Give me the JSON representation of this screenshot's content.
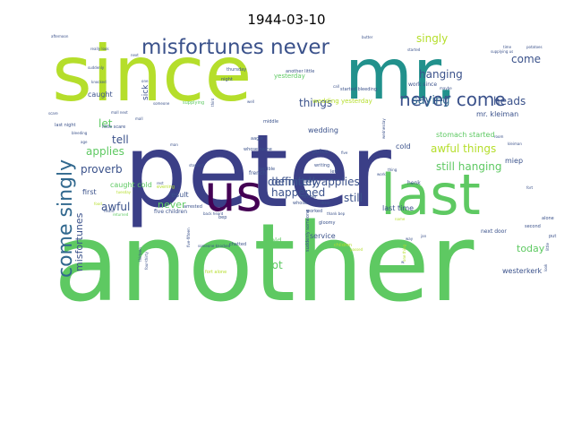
{
  "chart_data": {
    "type": "wordcloud",
    "title": "1944-03-10",
    "background": "#ffffff",
    "colormap": "viridis",
    "words": [
      {
        "text": "another",
        "weight": 100,
        "color": "#5ec962",
        "rotated": false
      },
      {
        "text": "peter",
        "weight": 98,
        "color": "#3b3f87",
        "rotated": false
      },
      {
        "text": "since",
        "weight": 80,
        "color": "#b5de2b",
        "rotated": false
      },
      {
        "text": "mr.",
        "weight": 78,
        "color": "#21918c",
        "rotated": false
      },
      {
        "text": "last",
        "weight": 60,
        "color": "#5ec962",
        "rotated": false
      },
      {
        "text": "us",
        "weight": 55,
        "color": "#440154",
        "rotated": false
      },
      {
        "text": "misfortunes never",
        "weight": 34,
        "color": "#3b528b",
        "rotated": false
      },
      {
        "text": "never come",
        "weight": 30,
        "color": "#3b528b",
        "rotated": false
      },
      {
        "text": "come singly",
        "weight": 30,
        "color": "#31688e",
        "rotated": true
      },
      {
        "text": "singly",
        "weight": 18,
        "color": "#b5de2b",
        "rotated": false
      },
      {
        "text": "hanging",
        "weight": 16,
        "color": "#3b528b",
        "rotated": false
      },
      {
        "text": "come",
        "weight": 15,
        "color": "#3b528b",
        "rotated": false
      },
      {
        "text": "saying",
        "weight": 16,
        "color": "#31688e",
        "rotated": false
      },
      {
        "text": "heads",
        "weight": 16,
        "color": "#3b528b",
        "rotated": false
      },
      {
        "text": "things",
        "weight": 15,
        "color": "#3b528b",
        "rotated": false
      },
      {
        "text": "let",
        "weight": 15,
        "color": "#5ec962",
        "rotated": false
      },
      {
        "text": "tell",
        "weight": 15,
        "color": "#3b528b",
        "rotated": false
      },
      {
        "text": "definitely",
        "weight": 15,
        "color": "#3b528b",
        "rotated": false
      },
      {
        "text": "definitely applies",
        "weight": 14,
        "color": "#3b528b",
        "rotated": false
      },
      {
        "text": "awful things",
        "weight": 14,
        "color": "#b5de2b",
        "rotated": false
      },
      {
        "text": "still hanging",
        "weight": 14,
        "color": "#5ec962",
        "rotated": false
      },
      {
        "text": "applies",
        "weight": 14,
        "color": "#5ec962",
        "rotated": false
      },
      {
        "text": "proverb",
        "weight": 14,
        "color": "#3b528b",
        "rotated": false
      },
      {
        "text": "awful",
        "weight": 14,
        "color": "#3b528b",
        "rotated": false
      },
      {
        "text": "happened",
        "weight": 13,
        "color": "#3b528b",
        "rotated": false
      },
      {
        "text": "still",
        "weight": 14,
        "color": "#3b528b",
        "rotated": false
      },
      {
        "text": "today",
        "weight": 13,
        "color": "#5ec962",
        "rotated": false
      },
      {
        "text": "got",
        "weight": 14,
        "color": "#5ec962",
        "rotated": false
      },
      {
        "text": "misfortunes",
        "weight": 13,
        "color": "#3b528b",
        "rotated": true
      },
      {
        "text": "sick",
        "weight": 10,
        "color": "#3b528b",
        "rotated": true
      },
      {
        "text": "never",
        "weight": 11,
        "color": "#5ec962",
        "rotated": false
      },
      {
        "text": "mr. kleiman",
        "weight": 9,
        "color": "#3b528b",
        "rotated": false
      },
      {
        "text": "miep",
        "weight": 10,
        "color": "#3b528b",
        "rotated": false
      },
      {
        "text": "wedding yesterday",
        "weight": 8,
        "color": "#b5de2b",
        "rotated": false
      },
      {
        "text": "wedding",
        "weight": 9,
        "color": "#3b528b",
        "rotated": false
      },
      {
        "text": "caught cold",
        "weight": 8,
        "color": "#5ec962",
        "rotated": false
      },
      {
        "text": "cold",
        "weight": 9,
        "color": "#3b528b",
        "rotated": false
      },
      {
        "text": "held",
        "weight": 9,
        "color": "#5ec962",
        "rotated": false
      },
      {
        "text": "first",
        "weight": 9,
        "color": "#3b528b",
        "rotated": false
      },
      {
        "text": "result",
        "weight": 8,
        "color": "#3b528b",
        "rotated": false
      },
      {
        "text": "caught",
        "weight": 8,
        "color": "#3b528b",
        "rotated": false
      },
      {
        "text": "yesterday",
        "weight": 8,
        "color": "#5ec962",
        "rotated": false
      },
      {
        "text": "work since",
        "weight": 8,
        "color": "#3b528b",
        "rotated": false
      },
      {
        "text": "stomach started",
        "weight": 7,
        "color": "#5ec962",
        "rotated": false
      },
      {
        "text": "last time",
        "weight": 8,
        "color": "#3b528b",
        "rotated": false
      },
      {
        "text": "service",
        "weight": 8,
        "color": "#3b528b",
        "rotated": false
      },
      {
        "text": "westerkerk",
        "weight": 8,
        "color": "#3b528b",
        "rotated": false
      },
      {
        "text": "aagje",
        "weight": 8,
        "color": "#3b528b",
        "rotated": false
      },
      {
        "text": "five children",
        "weight": 7,
        "color": "#3b528b",
        "rotated": false
      },
      {
        "text": "henk",
        "weight": 7,
        "color": "#3b528b",
        "rotated": false
      },
      {
        "text": "french",
        "weight": 6,
        "color": "#3b528b",
        "rotated": false
      },
      {
        "text": "whose name",
        "weight": 5,
        "color": "#3b528b",
        "rotated": false
      },
      {
        "text": "police",
        "weight": 5,
        "color": "#3b528b",
        "rotated": false
      },
      {
        "text": "writing",
        "weight": 5,
        "color": "#3b528b",
        "rotated": false
      },
      {
        "text": "middle",
        "weight": 5,
        "color": "#3b528b",
        "rotated": false
      },
      {
        "text": "terrible",
        "weight": 5,
        "color": "#3b528b",
        "rotated": false
      },
      {
        "text": "gloomy",
        "weight": 5,
        "color": "#3b528b",
        "rotated": false
      },
      {
        "text": "left",
        "weight": 5,
        "color": "#3b528b",
        "rotated": false
      },
      {
        "text": "started bleeding",
        "weight": 5,
        "color": "#3b528b",
        "rotated": false
      },
      {
        "text": "another little",
        "weight": 5,
        "color": "#3b528b",
        "rotated": false
      },
      {
        "text": "thursday",
        "weight": 5,
        "color": "#3b528b",
        "rotated": false
      },
      {
        "text": "night",
        "weight": 5,
        "color": "#3b528b",
        "rotated": false
      },
      {
        "text": "suddenly",
        "weight": 5,
        "color": "#3b528b",
        "rotated": false
      },
      {
        "text": "knocked",
        "weight": 5,
        "color": "#3b528b",
        "rotated": false
      },
      {
        "text": "next door",
        "weight": 5,
        "color": "#3b528b",
        "rotated": false
      },
      {
        "text": "chatted",
        "weight": 5,
        "color": "#3b528b",
        "rotated": false
      },
      {
        "text": "someone knocked",
        "weight": 4,
        "color": "#3b528b",
        "rotated": false
      },
      {
        "text": "arrested",
        "weight": 5,
        "color": "#3b528b",
        "rotated": false
      },
      {
        "text": "last night",
        "weight": 5,
        "color": "#3b528b",
        "rotated": false
      },
      {
        "text": "little scare",
        "weight": 5,
        "color": "#3b528b",
        "rotated": false
      },
      {
        "text": "bleeding",
        "weight": 5,
        "color": "#3b528b",
        "rotated": false
      },
      {
        "text": "age",
        "weight": 5,
        "color": "#3b528b",
        "rotated": false
      },
      {
        "text": "man",
        "weight": 5,
        "color": "#3b528b",
        "rotated": false
      },
      {
        "text": "dinner",
        "weight": 5,
        "color": "#3b528b",
        "rotated": false
      },
      {
        "text": "worked",
        "weight": 5,
        "color": "#3b528b",
        "rotated": false
      },
      {
        "text": "second",
        "weight": 5,
        "color": "#3b528b",
        "rotated": false
      },
      {
        "text": "alone",
        "weight": 5,
        "color": "#3b528b",
        "rotated": false
      },
      {
        "text": "put",
        "weight": 5,
        "color": "#3b528b",
        "rotated": false
      },
      {
        "text": "supplying",
        "weight": 5,
        "color": "#5ec962",
        "rotated": false
      },
      {
        "text": "supplying us",
        "weight": 5,
        "color": "#3b528b",
        "rotated": false
      },
      {
        "text": "butter",
        "weight": 5,
        "color": "#3b528b",
        "rotated": false
      },
      {
        "text": "time",
        "weight": 5,
        "color": "#3b528b",
        "rotated": false
      },
      {
        "text": "call",
        "weight": 5,
        "color": "#3b528b",
        "rotated": false
      },
      {
        "text": "fort",
        "weight": 5,
        "color": "#3b528b",
        "rotated": false
      },
      {
        "text": "room",
        "weight": 5,
        "color": "#3b528b",
        "rotated": false
      },
      {
        "text": "kleiman",
        "weight": 5,
        "color": "#3b528b",
        "rotated": false
      },
      {
        "text": "thing",
        "weight": 5,
        "color": "#3b528b",
        "rotated": false
      },
      {
        "text": "five",
        "weight": 5,
        "color": "#3b528b",
        "rotated": false
      },
      {
        "text": "work",
        "weight": 5,
        "color": "#3b528b",
        "rotated": false
      },
      {
        "text": "one",
        "weight": 5,
        "color": "#3b528b",
        "rotated": false
      },
      {
        "text": "next",
        "weight": 5,
        "color": "#3b528b",
        "rotated": false
      },
      {
        "text": "mall next",
        "weight": 5,
        "color": "#3b528b",
        "rotated": false
      },
      {
        "text": "mall",
        "weight": 5,
        "color": "#3b528b",
        "rotated": false
      },
      {
        "text": "well",
        "weight": 5,
        "color": "#3b528b",
        "rotated": false
      },
      {
        "text": "someone",
        "weight": 5,
        "color": "#3b528b",
        "rotated": false
      },
      {
        "text": "door",
        "weight": 5,
        "color": "#3b528b",
        "rotated": false
      },
      {
        "text": "whose",
        "weight": 5,
        "color": "#3b528b",
        "rotated": false
      },
      {
        "text": "bep",
        "weight": 5,
        "color": "#3b528b",
        "rotated": false
      },
      {
        "text": "stomach",
        "weight": 5,
        "color": "#3b528b",
        "rotated": false
      },
      {
        "text": "tuesday",
        "weight": 5,
        "color": "#b5de2b",
        "rotated": false
      },
      {
        "text": "evening",
        "weight": 4,
        "color": "#b5de2b",
        "rotated": false
      },
      {
        "text": "rest",
        "weight": 4,
        "color": "#3b528b",
        "rotated": false
      },
      {
        "text": "heard",
        "weight": 4,
        "color": "#3b528b",
        "rotated": false
      },
      {
        "text": "returned",
        "weight": 4,
        "color": "#5ec962",
        "rotated": false
      },
      {
        "text": "fort alone",
        "weight": 4,
        "color": "#b5de2b",
        "rotated": false
      },
      {
        "text": "five-fifteen",
        "weight": 5,
        "color": "#3b528b",
        "rotated": true
      },
      {
        "text": "four-thirty",
        "weight": 5,
        "color": "#3b528b",
        "rotated": true
      },
      {
        "text": "thirteen",
        "weight": 4,
        "color": "#3b528b",
        "rotated": true
      },
      {
        "text": "third",
        "weight": 4,
        "color": "#3b528b",
        "rotated": true
      },
      {
        "text": "wednesday",
        "weight": 4,
        "color": "#3b528b",
        "rotated": true
      },
      {
        "text": "one thing",
        "weight": 4,
        "color": "#b5de2b",
        "rotated": true
      },
      {
        "text": "suddenly someone",
        "weight": 4,
        "color": "#3b528b",
        "rotated": true
      },
      {
        "text": "children",
        "weight": 4,
        "color": "#b5de2b",
        "rotated": false
      },
      {
        "text": "passed",
        "weight": 4,
        "color": "#b5de2b",
        "rotated": false
      },
      {
        "text": "name",
        "weight": 4,
        "color": "#b5de2b",
        "rotated": false
      },
      {
        "text": "way",
        "weight": 4,
        "color": "#3b528b",
        "rotated": false
      },
      {
        "text": "jan",
        "weight": 5,
        "color": "#3b528b",
        "rotated": false
      },
      {
        "text": "w.",
        "weight": 4,
        "color": "#3b528b",
        "rotated": false
      },
      {
        "text": "little",
        "weight": 5,
        "color": "#3b528b",
        "rotated": true
      },
      {
        "text": "look",
        "weight": 4,
        "color": "#3b528b",
        "rotated": true
      },
      {
        "text": "afternoon",
        "weight": 4,
        "color": "#3b528b",
        "rotated": false
      },
      {
        "text": "really look",
        "weight": 4,
        "color": "#3b528b",
        "rotated": false
      },
      {
        "text": "potatoes",
        "weight": 4,
        "color": "#3b528b",
        "rotated": false
      },
      {
        "text": "started",
        "weight": 4,
        "color": "#3b528b",
        "rotated": false
      },
      {
        "text": "maybe",
        "weight": 4,
        "color": "#3b528b",
        "rotated": false
      },
      {
        "text": "food",
        "weight": 4,
        "color": "#b5de2b",
        "rotated": false
      },
      {
        "text": "scare",
        "weight": 4,
        "color": "#3b528b",
        "rotated": false
      },
      {
        "text": "back heard",
        "weight": 4,
        "color": "#3b528b",
        "rotated": false
      },
      {
        "text": "thank bep",
        "weight": 4,
        "color": "#3b528b",
        "rotated": false
      }
    ]
  }
}
